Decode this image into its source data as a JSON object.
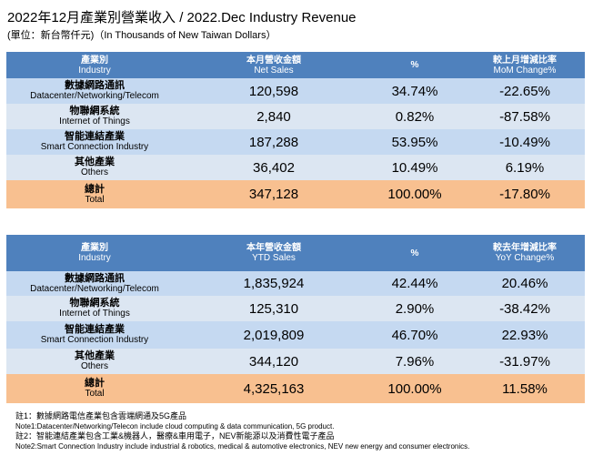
{
  "title": "2022年12月產業別營業收入  / 2022.Dec Industry Revenue",
  "subtitle": "(單位：新台幣仟元)（In Thousands of New Taiwan Dollars）",
  "colors": {
    "header": "#4f81bd",
    "row_a": "#c5d9f1",
    "row_b": "#dce6f2",
    "total": "#f8c090"
  },
  "monthly": {
    "headers": [
      {
        "zh": "產業別",
        "en": "Industry"
      },
      {
        "zh": "本月營收金額",
        "en": "Net Sales"
      },
      {
        "zh": "%",
        "en": ""
      },
      {
        "zh": "較上月增減比率",
        "en": "MoM Change%"
      }
    ],
    "rows": [
      {
        "zh": "數據網路通訊",
        "en": "Datacenter/Networking/Telecom",
        "sales": "120,598",
        "pct": "34.74%",
        "chg": "-22.65%"
      },
      {
        "zh": "物聯網系統",
        "en": "Internet of Things",
        "sales": "2,840",
        "pct": "0.82%",
        "chg": "-87.58%"
      },
      {
        "zh": "智能連結產業",
        "en": "Smart Connection Industry",
        "sales": "187,288",
        "pct": "53.95%",
        "chg": "-10.49%"
      },
      {
        "zh": "其他產業",
        "en": "Others",
        "sales": "36,402",
        "pct": "10.49%",
        "chg": "6.19%"
      },
      {
        "zh": "總計",
        "en": "Total",
        "sales": "347,128",
        "pct": "100.00%",
        "chg": "-17.80%"
      }
    ]
  },
  "ytd": {
    "headers": [
      {
        "zh": "產業別",
        "en": "Industry"
      },
      {
        "zh": "本年營收金額",
        "en": "YTD Sales"
      },
      {
        "zh": "%",
        "en": ""
      },
      {
        "zh": "較去年增減比率",
        "en": "YoY Change%"
      }
    ],
    "rows": [
      {
        "zh": "數據網路通訊",
        "en": "Datacenter/Networking/Telecom",
        "sales": "1,835,924",
        "pct": "42.44%",
        "chg": "20.46%"
      },
      {
        "zh": "物聯網系統",
        "en": "Internet of Things",
        "sales": "125,310",
        "pct": "2.90%",
        "chg": "-38.42%"
      },
      {
        "zh": "智能連結產業",
        "en": "Smart Connection Industry",
        "sales": "2,019,809",
        "pct": "46.70%",
        "chg": "22.93%"
      },
      {
        "zh": "其他產業",
        "en": "Others",
        "sales": "344,120",
        "pct": "7.96%",
        "chg": "-31.97%"
      },
      {
        "zh": "總計",
        "en": "Total",
        "sales": "4,325,163",
        "pct": "100.00%",
        "chg": "11.58%"
      }
    ]
  },
  "notes": [
    "註1：數據網路電信產業包含雲端網通及5G產品",
    "Note1:Datacenter/Networking/Telecon include cloud computing & data communication, 5G product.",
    "註2：智能連結產業包含工業&機器人，醫療&車用電子，NEV新能源以及消費性電子產品",
    "Note2:Smart Connection Industry include industrial & robotics, medical & automotive electronics, NEV new energy and consumer electronics."
  ]
}
